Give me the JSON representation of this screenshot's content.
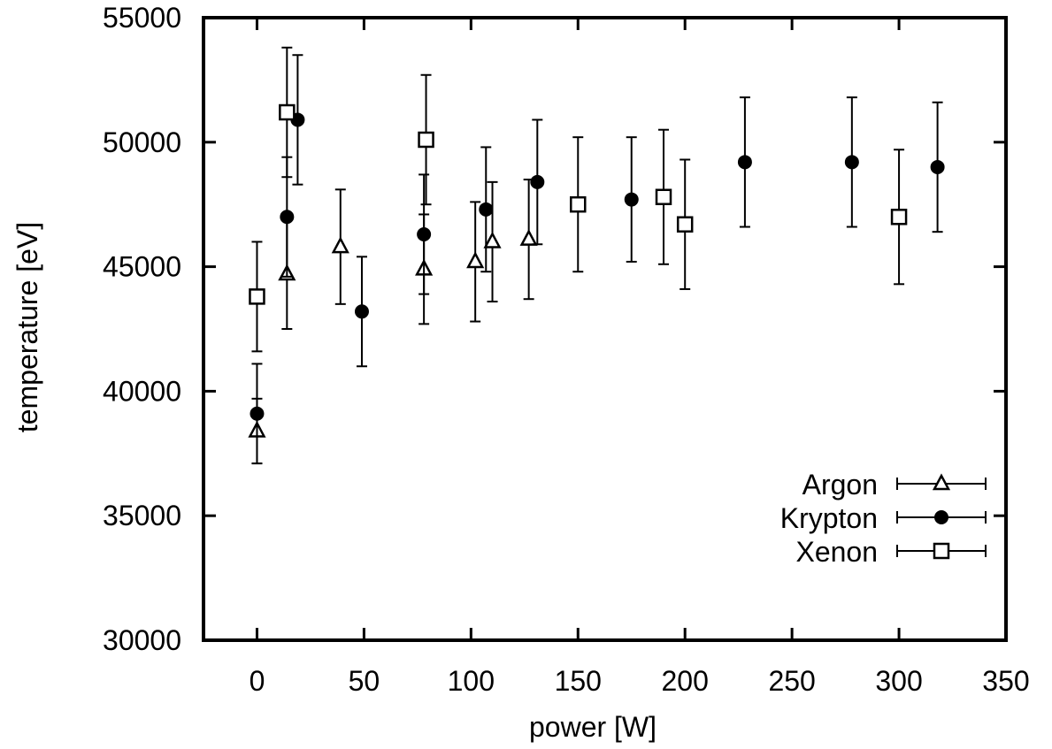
{
  "chart_data": {
    "type": "scatter",
    "title": "",
    "xlabel": "power [W]",
    "ylabel": "temperature [eV]",
    "xlim": [
      -25,
      350
    ],
    "ylim": [
      30000,
      55000
    ],
    "xticks": [
      0,
      50,
      100,
      150,
      200,
      250,
      300,
      350
    ],
    "yticks": [
      30000,
      35000,
      40000,
      45000,
      50000,
      55000
    ],
    "xtick_labels": [
      "0",
      "50",
      "100",
      "150",
      "200",
      "250",
      "300",
      "350"
    ],
    "ytick_labels": [
      "30000",
      "35000",
      "40000",
      "45000",
      "50000",
      "55000"
    ],
    "grid": false,
    "legend": {
      "position": "bottom-right",
      "labels": [
        "Argon",
        "Krypton",
        "Xenon"
      ]
    },
    "series": [
      {
        "name": "Argon",
        "marker": "open-triangle",
        "points": [
          {
            "x": 0,
            "y": 38400,
            "err": 1300
          },
          {
            "x": 14,
            "y": 44700,
            "err": 2200
          },
          {
            "x": 39,
            "y": 45800,
            "err": 2300
          },
          {
            "x": 78,
            "y": 44900,
            "err": 2200
          },
          {
            "x": 102,
            "y": 45200,
            "err": 2400
          },
          {
            "x": 110,
            "y": 46000,
            "err": 2400
          },
          {
            "x": 127,
            "y": 46100,
            "err": 2400
          }
        ]
      },
      {
        "name": "Krypton",
        "marker": "filled-circle",
        "points": [
          {
            "x": 0,
            "y": 39100,
            "err": 2000
          },
          {
            "x": 14,
            "y": 47000,
            "err": 2400
          },
          {
            "x": 19,
            "y": 50900,
            "err": 2600
          },
          {
            "x": 49,
            "y": 43200,
            "err": 2200
          },
          {
            "x": 78,
            "y": 46300,
            "err": 2400
          },
          {
            "x": 107,
            "y": 47300,
            "err": 2500
          },
          {
            "x": 131,
            "y": 48400,
            "err": 2500
          },
          {
            "x": 175,
            "y": 47700,
            "err": 2500
          },
          {
            "x": 228,
            "y": 49200,
            "err": 2600
          },
          {
            "x": 278,
            "y": 49200,
            "err": 2600
          },
          {
            "x": 318,
            "y": 49000,
            "err": 2600
          }
        ]
      },
      {
        "name": "Xenon",
        "marker": "open-square",
        "points": [
          {
            "x": 0,
            "y": 43800,
            "err": 2200
          },
          {
            "x": 14,
            "y": 51200,
            "err": 2600
          },
          {
            "x": 79,
            "y": 50100,
            "err": 2600
          },
          {
            "x": 150,
            "y": 47500,
            "err": 2700
          },
          {
            "x": 190,
            "y": 47800,
            "err": 2700
          },
          {
            "x": 200,
            "y": 46700,
            "err": 2600
          },
          {
            "x": 300,
            "y": 47000,
            "err": 2700
          }
        ]
      }
    ]
  }
}
